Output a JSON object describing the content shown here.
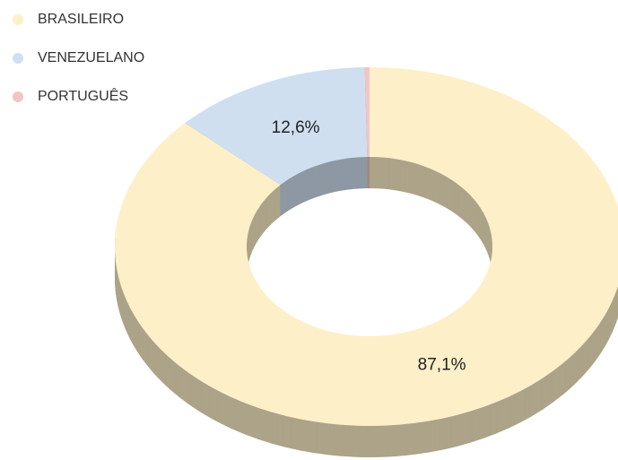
{
  "chart_data": {
    "type": "pie",
    "categories": [
      "BRASILEIRO",
      "VENEZUELANO",
      "PORTUGUÊS"
    ],
    "values": [
      87.1,
      12.6,
      0.3
    ],
    "value_labels": [
      "87,1%",
      "12,6%",
      null
    ],
    "colors": [
      "#fdefc8",
      "#cfdff0",
      "#f2c4c4"
    ],
    "donut": true,
    "three_d": true,
    "legend": "top-left"
  }
}
